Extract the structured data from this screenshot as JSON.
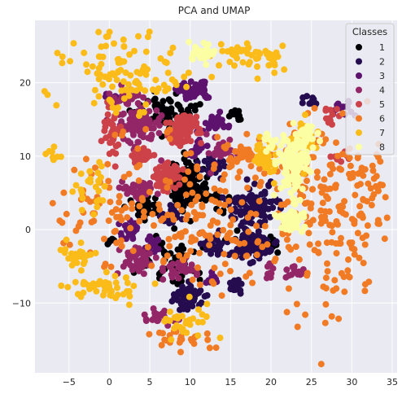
{
  "chart_data": {
    "type": "scatter",
    "title": "PCA and UMAP",
    "xlabel": "",
    "ylabel": "",
    "xlim": [
      -9.2,
      35.6
    ],
    "ylim": [
      -19.5,
      28.5
    ],
    "xticks": [
      -5,
      0,
      5,
      10,
      15,
      20,
      25,
      30,
      35
    ],
    "yticks": [
      -10,
      0,
      10,
      20
    ],
    "grid": true,
    "legend": {
      "title": "Classes",
      "placement": "top-right",
      "entries": [
        "1",
        "2",
        "3",
        "4",
        "5",
        "6",
        "7",
        "8"
      ]
    },
    "series": [
      {
        "name": "1",
        "color": "#000004",
        "clusters": [
          {
            "x": 9.8,
            "y": 6.0,
            "rx": 2.0,
            "ry": 3.0,
            "n": 140
          },
          {
            "x": 7.0,
            "y": 16.0,
            "rx": 2.8,
            "ry": 2.2,
            "n": 70
          },
          {
            "x": 4.5,
            "y": 2.8,
            "rx": 1.8,
            "ry": 1.5,
            "n": 40
          },
          {
            "x": 8.0,
            "y": -4.0,
            "rx": 3.0,
            "ry": 3.5,
            "n": 45
          },
          {
            "x": 15.7,
            "y": 15.7,
            "rx": 0.9,
            "ry": 0.7,
            "n": 18
          },
          {
            "x": 16.5,
            "y": -1.5,
            "rx": 1.8,
            "ry": 2.0,
            "n": 18
          },
          {
            "x": 20.0,
            "y": -2.0,
            "rx": 1.0,
            "ry": 1.0,
            "n": 12
          },
          {
            "x": 13.0,
            "y": 4.0,
            "rx": 1.5,
            "ry": 1.5,
            "n": 15
          },
          {
            "x": 0.0,
            "y": -1.5,
            "rx": 0.6,
            "ry": 0.6,
            "n": 6
          }
        ]
      },
      {
        "name": "2",
        "color": "#240c4f",
        "clusters": [
          {
            "x": 17.7,
            "y": 3.1,
            "rx": 2.8,
            "ry": 2.3,
            "n": 120
          },
          {
            "x": 17.5,
            "y": -2.5,
            "rx": 2.3,
            "ry": 1.6,
            "n": 90
          },
          {
            "x": 9.7,
            "y": -9.2,
            "rx": 1.7,
            "ry": 1.6,
            "n": 60
          },
          {
            "x": 13.0,
            "y": -2.0,
            "rx": 1.2,
            "ry": 1.3,
            "n": 35
          },
          {
            "x": 13.0,
            "y": 8.5,
            "rx": 1.5,
            "ry": 1.2,
            "n": 30
          },
          {
            "x": 7.5,
            "y": 2.0,
            "rx": 1.5,
            "ry": 1.2,
            "n": 25
          },
          {
            "x": 15.5,
            "y": -7.5,
            "rx": 1.0,
            "ry": 1.0,
            "n": 20
          },
          {
            "x": 25.0,
            "y": 17.5,
            "rx": 0.8,
            "ry": 0.7,
            "n": 10
          }
        ]
      },
      {
        "name": "3",
        "color": "#5d126e",
        "clusters": [
          {
            "x": 10.5,
            "y": 19.0,
            "rx": 1.8,
            "ry": 1.2,
            "n": 60
          },
          {
            "x": 13.0,
            "y": 14.5,
            "rx": 1.3,
            "ry": 1.0,
            "n": 30
          },
          {
            "x": 11.0,
            "y": 11.0,
            "rx": 1.0,
            "ry": 1.0,
            "n": 20
          },
          {
            "x": 2.5,
            "y": 0.0,
            "rx": 1.0,
            "ry": 1.2,
            "n": 30
          },
          {
            "x": 5.0,
            "y": -2.0,
            "rx": 1.2,
            "ry": 1.0,
            "n": 20
          },
          {
            "x": 29.0,
            "y": 16.5,
            "rx": 1.3,
            "ry": 1.0,
            "n": 15
          },
          {
            "x": 12.5,
            "y": -6.5,
            "rx": 0.8,
            "ry": 0.8,
            "n": 12
          },
          {
            "x": 0.0,
            "y": 18.0,
            "rx": 0.8,
            "ry": 0.8,
            "n": 10
          }
        ]
      },
      {
        "name": "4",
        "color": "#932667",
        "clusters": [
          {
            "x": 3.5,
            "y": 14.5,
            "rx": 2.4,
            "ry": 3.0,
            "n": 90
          },
          {
            "x": 2.2,
            "y": 18.4,
            "rx": 1.4,
            "ry": 1.2,
            "n": 30
          },
          {
            "x": 3.5,
            "y": 5.5,
            "rx": 2.5,
            "ry": 1.0,
            "n": 40
          },
          {
            "x": 3.5,
            "y": -4.0,
            "rx": 2.0,
            "ry": 2.0,
            "n": 50
          },
          {
            "x": 9.0,
            "y": -5.5,
            "rx": 2.0,
            "ry": 1.2,
            "n": 30
          },
          {
            "x": 14.0,
            "y": 10.5,
            "rx": 1.5,
            "ry": 1.5,
            "n": 30
          },
          {
            "x": 6.0,
            "y": -12.0,
            "rx": 1.5,
            "ry": 1.0,
            "n": 20
          },
          {
            "x": 23.0,
            "y": -6.0,
            "rx": 1.2,
            "ry": 1.0,
            "n": 15
          },
          {
            "x": 20.0,
            "y": -5.5,
            "rx": 1.0,
            "ry": 1.0,
            "n": 10
          }
        ]
      },
      {
        "name": "5",
        "color": "#cc4248",
        "clusters": [
          {
            "x": 9.1,
            "y": 13.6,
            "rx": 1.9,
            "ry": 2.1,
            "n": 90
          },
          {
            "x": 7.2,
            "y": 7.4,
            "rx": 1.6,
            "ry": 1.7,
            "n": 70
          },
          {
            "x": 0.5,
            "y": 13.5,
            "rx": 1.0,
            "ry": 3.5,
            "n": 40
          },
          {
            "x": 4.0,
            "y": 10.0,
            "rx": 1.5,
            "ry": 1.0,
            "n": 20
          },
          {
            "x": 27.5,
            "y": 15.5,
            "rx": 1.0,
            "ry": 1.5,
            "n": 12
          },
          {
            "x": 28.5,
            "y": 10.0,
            "rx": 1.0,
            "ry": 1.0,
            "n": 8
          }
        ]
      },
      {
        "name": "6",
        "color": "#f17b24",
        "clusters": [
          {
            "x": 13.0,
            "y": 1.0,
            "rx": 11.0,
            "ry": 10.0,
            "n": 180
          },
          {
            "x": 27.0,
            "y": 2.0,
            "rx": 5.5,
            "ry": 12.0,
            "n": 160
          },
          {
            "x": 0.0,
            "y": 4.0,
            "rx": 6.0,
            "ry": 7.0,
            "n": 60
          },
          {
            "x": 9.0,
            "y": -15.0,
            "rx": 4.0,
            "ry": 1.5,
            "n": 25
          },
          {
            "x": 16.0,
            "y": 10.0,
            "rx": 2.0,
            "ry": 1.5,
            "n": 30
          },
          {
            "x": 32.0,
            "y": 6.0,
            "rx": 2.0,
            "ry": 8.0,
            "n": 40
          }
        ]
      },
      {
        "name": "7",
        "color": "#fbbc1a",
        "clusters": [
          {
            "x": 2.5,
            "y": 21.5,
            "rx": 6.5,
            "ry": 5.0,
            "n": 110
          },
          {
            "x": 19.5,
            "y": 10.0,
            "rx": 1.5,
            "ry": 2.5,
            "n": 40
          },
          {
            "x": 0.0,
            "y": -8.0,
            "rx": 4.0,
            "ry": 1.5,
            "n": 45
          },
          {
            "x": -4.0,
            "y": -3.5,
            "rx": 2.0,
            "ry": 2.0,
            "n": 25
          },
          {
            "x": -2.5,
            "y": 6.0,
            "rx": 2.5,
            "ry": 3.0,
            "n": 25
          },
          {
            "x": 17.0,
            "y": 24.0,
            "rx": 4.0,
            "ry": 1.6,
            "n": 40
          },
          {
            "x": 9.5,
            "y": -12.0,
            "rx": 3.5,
            "ry": 2.5,
            "n": 30
          },
          {
            "x": 24.0,
            "y": 12.5,
            "rx": 1.5,
            "ry": 2.5,
            "n": 25
          },
          {
            "x": -7.0,
            "y": 10.0,
            "rx": 1.0,
            "ry": 1.0,
            "n": 8
          },
          {
            "x": 20.0,
            "y": 23.0,
            "rx": 1.5,
            "ry": 1.0,
            "n": 10
          }
        ]
      },
      {
        "name": "8",
        "color": "#fcfea4",
        "clusters": [
          {
            "x": 22.8,
            "y": 8.5,
            "rx": 1.8,
            "ry": 3.7,
            "n": 110
          },
          {
            "x": 22.3,
            "y": 1.3,
            "rx": 1.5,
            "ry": 1.2,
            "n": 45
          },
          {
            "x": 24.5,
            "y": 13.0,
            "rx": 1.0,
            "ry": 1.6,
            "n": 30
          },
          {
            "x": 11.5,
            "y": 24.2,
            "rx": 1.5,
            "ry": 1.0,
            "n": 30
          },
          {
            "x": 19.5,
            "y": 12.0,
            "rx": 0.8,
            "ry": 1.0,
            "n": 10
          }
        ]
      }
    ]
  }
}
